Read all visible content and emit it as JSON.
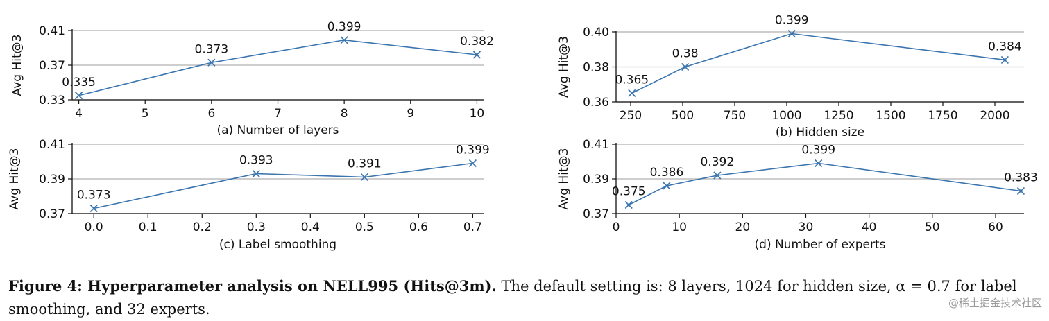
{
  "chart_data": [
    {
      "type": "line",
      "xlabel": "(a) Number of layers",
      "ylabel": "Avg Hit@3",
      "x": [
        4,
        6,
        8,
        10
      ],
      "values": [
        0.335,
        0.373,
        0.399,
        0.382
      ],
      "point_labels": [
        "0.335",
        "0.373",
        "0.399",
        "0.382"
      ],
      "xlim": [
        3.9,
        10.1
      ],
      "ylim": [
        0.33,
        0.41
      ],
      "xticks": [
        4,
        5,
        6,
        7,
        8,
        9,
        10
      ],
      "xtick_labels": [
        "4",
        "5",
        "6",
        "7",
        "8",
        "9",
        "10"
      ],
      "yticks": [
        0.33,
        0.37,
        0.41
      ],
      "ytick_labels": [
        "0.33",
        "0.37",
        "0.41"
      ],
      "grid": "horizontal",
      "marker": "x",
      "color": "#3b75af"
    },
    {
      "type": "line",
      "xlabel": "(b) Hidden size",
      "ylabel": "Avg Hit@3",
      "x": [
        256,
        512,
        1024,
        2048
      ],
      "values": [
        0.365,
        0.38,
        0.399,
        0.384
      ],
      "point_labels": [
        "0.365",
        "0.38",
        "0.399",
        "0.384"
      ],
      "xlim": [
        180,
        2140
      ],
      "ylim": [
        0.36,
        0.4
      ],
      "xticks": [
        250,
        500,
        750,
        1000,
        1250,
        1500,
        1750,
        2000
      ],
      "xtick_labels": [
        "250",
        "500",
        "750",
        "1000",
        "1250",
        "1500",
        "1750",
        "2000"
      ],
      "yticks": [
        0.36,
        0.38,
        0.4
      ],
      "ytick_labels": [
        "0.36",
        "0.38",
        "0.40"
      ],
      "grid": "horizontal",
      "marker": "x",
      "color": "#3b75af"
    },
    {
      "type": "line",
      "xlabel": "(c) Label smoothing",
      "ylabel": "Avg Hit@3",
      "x": [
        0.0,
        0.3,
        0.5,
        0.7
      ],
      "values": [
        0.373,
        0.393,
        0.391,
        0.399
      ],
      "point_labels": [
        "0.373",
        "0.393",
        "0.391",
        "0.399"
      ],
      "xlim": [
        -0.04,
        0.72
      ],
      "ylim": [
        0.37,
        0.41
      ],
      "xticks": [
        0.0,
        0.1,
        0.2,
        0.3,
        0.4,
        0.5,
        0.6,
        0.7
      ],
      "xtick_labels": [
        "0.0",
        "0.1",
        "0.2",
        "0.3",
        "0.4",
        "0.5",
        "0.6",
        "0.7"
      ],
      "yticks": [
        0.37,
        0.39,
        0.41
      ],
      "ytick_labels": [
        "0.37",
        "0.39",
        "0.41"
      ],
      "grid": "horizontal",
      "marker": "x",
      "color": "#3b75af"
    },
    {
      "type": "line",
      "xlabel": "(d) Number of experts",
      "ylabel": "Avg Hit@3",
      "x": [
        2,
        8,
        16,
        32,
        64
      ],
      "values": [
        0.375,
        0.386,
        0.392,
        0.399,
        0.383
      ],
      "point_labels": [
        "0.375",
        "0.386",
        "0.392",
        "0.399",
        "0.383"
      ],
      "xlim": [
        0,
        64.5
      ],
      "ylim": [
        0.37,
        0.41
      ],
      "xticks": [
        0,
        10,
        20,
        30,
        40,
        50,
        60
      ],
      "xtick_labels": [
        "0",
        "10",
        "20",
        "30",
        "40",
        "50",
        "60"
      ],
      "yticks": [
        0.37,
        0.39,
        0.41
      ],
      "ytick_labels": [
        "0.37",
        "0.39",
        "0.41"
      ],
      "grid": "horizontal",
      "marker": "x",
      "color": "#3b75af"
    }
  ],
  "caption": {
    "label": "Figure 4: Hyperparameter analysis on NELL995 (Hits@3m).",
    "text": " The default setting is: 8 layers, 1024 for hidden size, α = 0.7 for label smoothing, and 32 experts."
  },
  "watermark": "@稀土掘金技术社区"
}
